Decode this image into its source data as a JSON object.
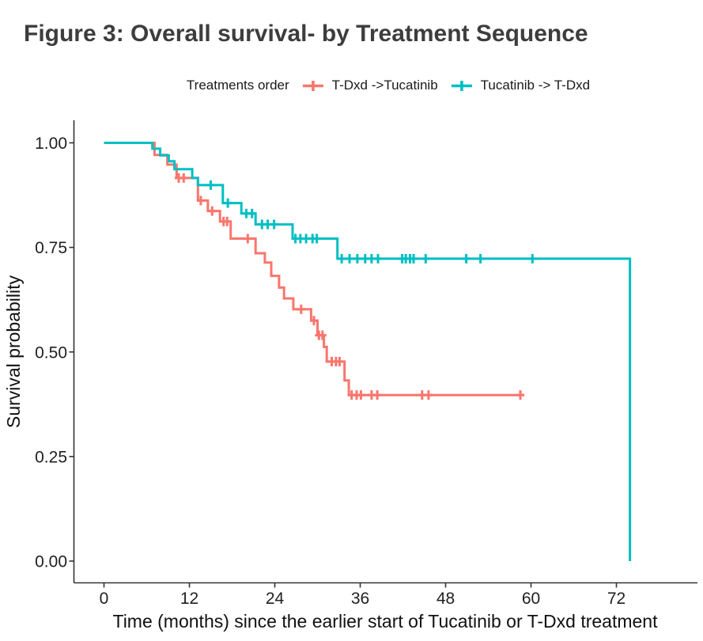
{
  "chart_data": {
    "type": "line",
    "subtype": "kaplan_meier_step",
    "title": "Figure 3: Overall survival- by Treatment Sequence",
    "xlabel": "Time (months) since the earlier start of Tucatinib or T-Dxd treatment",
    "ylabel": "Survival probability",
    "xlim": [
      0,
      78
    ],
    "ylim": [
      0,
      1
    ],
    "grid": false,
    "legend_position": "top",
    "legend_title": "Treatments order",
    "x_ticks": [
      {
        "value": 0,
        "label": "0"
      },
      {
        "value": 12,
        "label": "12"
      },
      {
        "value": 24,
        "label": "24"
      },
      {
        "value": 36,
        "label": "36"
      },
      {
        "value": 48,
        "label": "48"
      },
      {
        "value": 60,
        "label": "60"
      },
      {
        "value": 72,
        "label": "72"
      }
    ],
    "y_ticks": [
      {
        "value": 1.0,
        "label": "1.00"
      },
      {
        "value": 0.75,
        "label": "0.75"
      },
      {
        "value": 0.5,
        "label": "0.50"
      },
      {
        "value": 0.25,
        "label": "0.25"
      },
      {
        "value": 0.0,
        "label": "0.00"
      }
    ],
    "series": [
      {
        "name": "T-Dxd ->Tucatinib",
        "color": "#F8766D",
        "end_time": 59.0,
        "steps": [
          [
            0,
            1.0
          ],
          [
            7.1,
            0.971
          ],
          [
            8.9,
            0.948
          ],
          [
            10.2,
            0.916
          ],
          [
            13.2,
            0.862
          ],
          [
            14.6,
            0.837
          ],
          [
            16.3,
            0.812
          ],
          [
            17.8,
            0.771
          ],
          [
            21.3,
            0.736
          ],
          [
            22.6,
            0.714
          ],
          [
            23.5,
            0.682
          ],
          [
            24.6,
            0.654
          ],
          [
            25.3,
            0.628
          ],
          [
            26.6,
            0.602
          ],
          [
            29.1,
            0.575
          ],
          [
            30.0,
            0.54
          ],
          [
            30.9,
            0.512
          ],
          [
            31.3,
            0.477
          ],
          [
            33.8,
            0.432
          ],
          [
            34.4,
            0.397
          ]
        ],
        "censor_marks": [
          [
            10.5,
            0.916
          ],
          [
            11.2,
            0.916
          ],
          [
            13.6,
            0.862
          ],
          [
            15.2,
            0.837
          ],
          [
            16.8,
            0.812
          ],
          [
            17.3,
            0.812
          ],
          [
            20.2,
            0.771
          ],
          [
            27.7,
            0.602
          ],
          [
            29.5,
            0.575
          ],
          [
            30.2,
            0.54
          ],
          [
            30.7,
            0.54
          ],
          [
            32.0,
            0.477
          ],
          [
            32.6,
            0.477
          ],
          [
            33.1,
            0.477
          ],
          [
            34.8,
            0.397
          ],
          [
            35.5,
            0.397
          ],
          [
            36.1,
            0.397
          ],
          [
            37.6,
            0.397
          ],
          [
            38.4,
            0.397
          ],
          [
            44.7,
            0.397
          ],
          [
            45.6,
            0.397
          ],
          [
            58.5,
            0.397
          ]
        ]
      },
      {
        "name": "Tucatinib -> T-Dxd",
        "color": "#00BFC4",
        "end_time": 73.9,
        "steps": [
          [
            0,
            1.0
          ],
          [
            6.8,
            0.986
          ],
          [
            7.9,
            0.97
          ],
          [
            9.1,
            0.956
          ],
          [
            9.9,
            0.937
          ],
          [
            12.4,
            0.916
          ],
          [
            13.2,
            0.899
          ],
          [
            16.7,
            0.856
          ],
          [
            19.3,
            0.831
          ],
          [
            21.3,
            0.805
          ],
          [
            26.5,
            0.771
          ],
          [
            32.8,
            0.723
          ],
          [
            73.9,
            0.0
          ]
        ],
        "censor_marks": [
          [
            15.0,
            0.899
          ],
          [
            17.4,
            0.856
          ],
          [
            20.0,
            0.831
          ],
          [
            20.8,
            0.831
          ],
          [
            22.2,
            0.805
          ],
          [
            23.0,
            0.805
          ],
          [
            23.9,
            0.805
          ],
          [
            26.9,
            0.771
          ],
          [
            27.6,
            0.771
          ],
          [
            28.4,
            0.771
          ],
          [
            29.3,
            0.771
          ],
          [
            29.9,
            0.771
          ],
          [
            33.4,
            0.723
          ],
          [
            34.5,
            0.723
          ],
          [
            35.6,
            0.723
          ],
          [
            36.7,
            0.723
          ],
          [
            37.6,
            0.723
          ],
          [
            38.5,
            0.723
          ],
          [
            41.9,
            0.723
          ],
          [
            42.4,
            0.723
          ],
          [
            43.0,
            0.723
          ],
          [
            43.5,
            0.723
          ],
          [
            45.2,
            0.723
          ],
          [
            50.9,
            0.723
          ],
          [
            52.9,
            0.723
          ],
          [
            60.2,
            0.723
          ]
        ]
      }
    ]
  }
}
